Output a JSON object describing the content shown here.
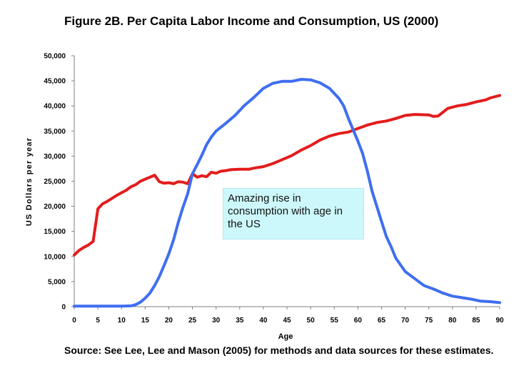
{
  "header": {
    "title": "Figure 2B. Per Capita Labor Income and Consumption, US (2000)"
  },
  "footer": {
    "source": "Source: See Lee, Lee and Mason (2005) for methods and data sources for these estimates."
  },
  "annotation": {
    "text": "Amazing rise in consumption with age in the US",
    "background": "#cdf8fb"
  },
  "chart_data": {
    "type": "line",
    "title": "Figure 2B. Per Capita Labor Income and Consumption, US (2000)",
    "xlabel": "Age",
    "ylabel": "US Dollars per year",
    "xlim": [
      0,
      90
    ],
    "ylim": [
      0,
      50000
    ],
    "x_ticks": [
      "0",
      "5",
      "10",
      "15",
      "20",
      "25",
      "30",
      "35",
      "40",
      "45",
      "50",
      "55",
      "60",
      "65",
      "70",
      "75",
      "80",
      "85",
      "90"
    ],
    "y_ticks": [
      "0",
      "5,000",
      "10,000",
      "15,000",
      "20,000",
      "25,000",
      "30,000",
      "35,000",
      "40,000",
      "45,000",
      "50,000"
    ],
    "grid": false,
    "legend": "none",
    "series": [
      {
        "color": "#e41c1c",
        "points": [
          [
            0,
            10300
          ],
          [
            1,
            11200
          ],
          [
            2,
            11800
          ],
          [
            3,
            12300
          ],
          [
            4,
            13000
          ],
          [
            5,
            19500
          ],
          [
            6,
            20500
          ],
          [
            7,
            21000
          ],
          [
            8,
            21600
          ],
          [
            9,
            22200
          ],
          [
            10,
            22700
          ],
          [
            11,
            23200
          ],
          [
            12,
            23900
          ],
          [
            13,
            24300
          ],
          [
            14,
            25000
          ],
          [
            15,
            25400
          ],
          [
            16,
            25800
          ],
          [
            17,
            26200
          ],
          [
            18,
            24900
          ],
          [
            19,
            24600
          ],
          [
            20,
            24700
          ],
          [
            21,
            24500
          ],
          [
            22,
            24900
          ],
          [
            23,
            24800
          ],
          [
            24,
            24500
          ],
          [
            25,
            26500
          ],
          [
            26,
            25800
          ],
          [
            27,
            26100
          ],
          [
            28,
            25900
          ],
          [
            29,
            26800
          ],
          [
            30,
            26600
          ],
          [
            31,
            27000
          ],
          [
            32,
            27100
          ],
          [
            33,
            27300
          ],
          [
            35,
            27400
          ],
          [
            37,
            27400
          ],
          [
            38,
            27600
          ],
          [
            40,
            27900
          ],
          [
            42,
            28500
          ],
          [
            44,
            29300
          ],
          [
            46,
            30100
          ],
          [
            48,
            31200
          ],
          [
            50,
            32100
          ],
          [
            52,
            33200
          ],
          [
            54,
            34000
          ],
          [
            56,
            34500
          ],
          [
            58,
            34800
          ],
          [
            60,
            35500
          ],
          [
            62,
            36200
          ],
          [
            64,
            36700
          ],
          [
            66,
            37000
          ],
          [
            68,
            37500
          ],
          [
            70,
            38100
          ],
          [
            72,
            38300
          ],
          [
            75,
            38200
          ],
          [
            76,
            37900
          ],
          [
            77,
            38000
          ],
          [
            79,
            39500
          ],
          [
            81,
            40000
          ],
          [
            83,
            40300
          ],
          [
            85,
            40800
          ],
          [
            87,
            41200
          ],
          [
            88,
            41600
          ],
          [
            90,
            42100
          ]
        ]
      },
      {
        "color": "#3f6ef0",
        "points": [
          [
            0,
            100
          ],
          [
            5,
            100
          ],
          [
            10,
            100
          ],
          [
            12,
            150
          ],
          [
            13,
            400
          ],
          [
            14,
            900
          ],
          [
            15,
            1700
          ],
          [
            16,
            2700
          ],
          [
            17,
            4200
          ],
          [
            18,
            6000
          ],
          [
            19,
            8200
          ],
          [
            20,
            10500
          ],
          [
            21,
            13300
          ],
          [
            22,
            16800
          ],
          [
            23,
            19800
          ],
          [
            24,
            22500
          ],
          [
            25,
            26500
          ],
          [
            26,
            28300
          ],
          [
            27,
            30200
          ],
          [
            28,
            32300
          ],
          [
            29,
            33800
          ],
          [
            30,
            35000
          ],
          [
            32,
            36500
          ],
          [
            34,
            38100
          ],
          [
            36,
            40100
          ],
          [
            38,
            41700
          ],
          [
            40,
            43500
          ],
          [
            42,
            44500
          ],
          [
            44,
            44900
          ],
          [
            46,
            44900
          ],
          [
            48,
            45300
          ],
          [
            50,
            45200
          ],
          [
            52,
            44600
          ],
          [
            54,
            43500
          ],
          [
            56,
            41500
          ],
          [
            57,
            40000
          ],
          [
            58,
            37500
          ],
          [
            60,
            33000
          ],
          [
            61,
            30500
          ],
          [
            62,
            27000
          ],
          [
            63,
            23000
          ],
          [
            64,
            20000
          ],
          [
            65,
            17000
          ],
          [
            66,
            14000
          ],
          [
            67,
            12000
          ],
          [
            68,
            9700
          ],
          [
            70,
            7000
          ],
          [
            72,
            5600
          ],
          [
            74,
            4200
          ],
          [
            76,
            3500
          ],
          [
            78,
            2700
          ],
          [
            80,
            2100
          ],
          [
            82,
            1800
          ],
          [
            84,
            1500
          ],
          [
            86,
            1100
          ],
          [
            88,
            1000
          ],
          [
            90,
            800
          ]
        ]
      }
    ]
  }
}
